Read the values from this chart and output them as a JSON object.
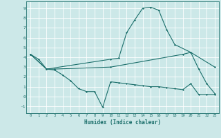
{
  "xlabel": "Humidex (Indice chaleur)",
  "bg_color": "#cce8e8",
  "line_color": "#1a6e6a",
  "grid_color": "#ffffff",
  "xlim": [
    -0.5,
    23.5
  ],
  "ylim": [
    -1.7,
    9.7
  ],
  "yticks": [
    -1,
    0,
    1,
    2,
    3,
    4,
    5,
    6,
    7,
    8,
    9
  ],
  "xticks": [
    0,
    1,
    2,
    3,
    4,
    5,
    6,
    7,
    8,
    9,
    10,
    11,
    12,
    13,
    14,
    15,
    16,
    17,
    18,
    19,
    20,
    21,
    22,
    23
  ],
  "line1_x": [
    0,
    1,
    2,
    3,
    4,
    5,
    6,
    7,
    8,
    9,
    10,
    11,
    12,
    13,
    14,
    15,
    16,
    17,
    18,
    19,
    20,
    21,
    22,
    23
  ],
  "line1_y": [
    4.3,
    3.8,
    2.8,
    2.7,
    2.2,
    1.6,
    0.8,
    0.5,
    0.5,
    -1.1,
    1.5,
    1.4,
    1.3,
    1.2,
    1.1,
    1.0,
    1.0,
    0.9,
    0.8,
    0.7,
    1.3,
    0.2,
    0.2,
    0.2
  ],
  "line2_x": [
    0,
    2,
    10,
    11,
    12,
    13,
    14,
    15,
    16,
    17,
    18,
    20,
    21,
    22,
    23
  ],
  "line2_y": [
    4.3,
    2.8,
    3.8,
    3.9,
    6.5,
    7.8,
    9.0,
    9.1,
    8.8,
    6.8,
    5.3,
    4.5,
    2.8,
    1.3,
    0.3
  ],
  "line3_x": [
    0,
    2,
    3,
    10,
    19,
    20,
    23
  ],
  "line3_y": [
    4.3,
    2.8,
    2.8,
    3.0,
    4.3,
    4.5,
    3.0
  ]
}
